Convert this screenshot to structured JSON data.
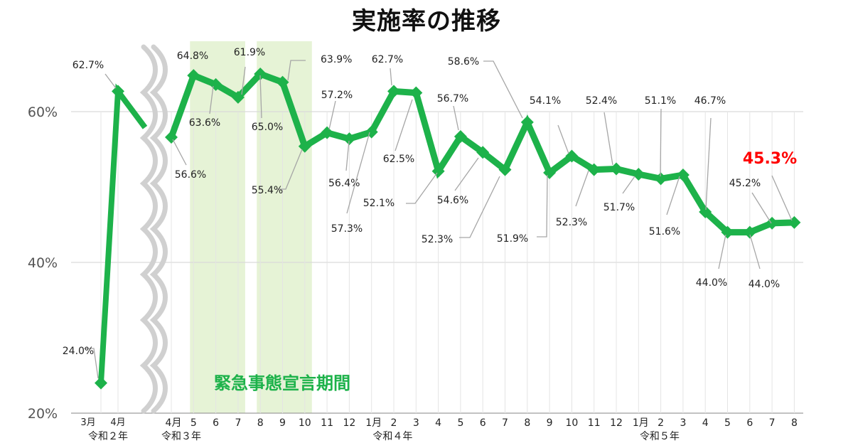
{
  "chart_data": {
    "type": "line",
    "title": "実施率の推移",
    "band_label": "緊急事態宣言期間",
    "yticks": [
      "20%",
      "40%",
      "60%"
    ],
    "ylim": [
      20,
      65
    ],
    "segment1": {
      "x": [
        "3月",
        "4月"
      ],
      "era": "令和２年",
      "values": [
        24.0,
        62.7
      ],
      "labels": [
        "24.0%",
        "62.7%"
      ]
    },
    "segment2": {
      "x": [
        "4月",
        "5",
        "6",
        "7",
        "8",
        "9",
        "10",
        "11",
        "12",
        "1月",
        "2",
        "3",
        "4",
        "5",
        "6",
        "7",
        "8",
        "9",
        "10",
        "11",
        "12",
        "1月",
        "2",
        "3",
        "4",
        "5",
        "6",
        "7",
        "8"
      ],
      "eras": [
        {
          "label": "令和３年",
          "at": 0
        },
        {
          "label": "令和４年",
          "at": 9.5
        },
        {
          "label": "令和５年",
          "at": 21.5
        }
      ],
      "values": [
        56.6,
        64.8,
        63.6,
        61.9,
        65.0,
        63.9,
        55.4,
        57.2,
        56.4,
        57.3,
        62.7,
        62.5,
        52.1,
        56.7,
        54.6,
        52.3,
        58.6,
        51.9,
        54.1,
        52.3,
        52.4,
        51.7,
        51.1,
        51.6,
        46.7,
        44.0,
        44.0,
        45.2,
        45.3
      ],
      "labels": [
        "56.6%",
        "64.8%",
        "63.6%",
        "61.9%",
        "65.0%",
        "63.9%",
        "55.4%",
        "57.2%",
        "56.4%",
        "57.3%",
        "62.7%",
        "62.5%",
        "52.1%",
        "56.7%",
        "54.6%",
        "52.3%",
        "58.6%",
        "51.9%",
        "54.1%",
        "52.3%",
        "52.4%",
        "51.7%",
        "51.1%",
        "51.6%",
        "46.7%",
        "44.0%",
        "44.0%",
        "45.2%",
        "45.3%"
      ]
    },
    "emergency_periods": [
      [
        1,
        3
      ],
      [
        4,
        6
      ]
    ],
    "highlight_label": "45.3%",
    "colors": {
      "line": "#1db24a",
      "band": "#e6f3d6",
      "highlight": "#ff0000",
      "grid": "#d9d9d9",
      "break": "#d0d0d0",
      "leader": "#a6a6a6"
    }
  }
}
